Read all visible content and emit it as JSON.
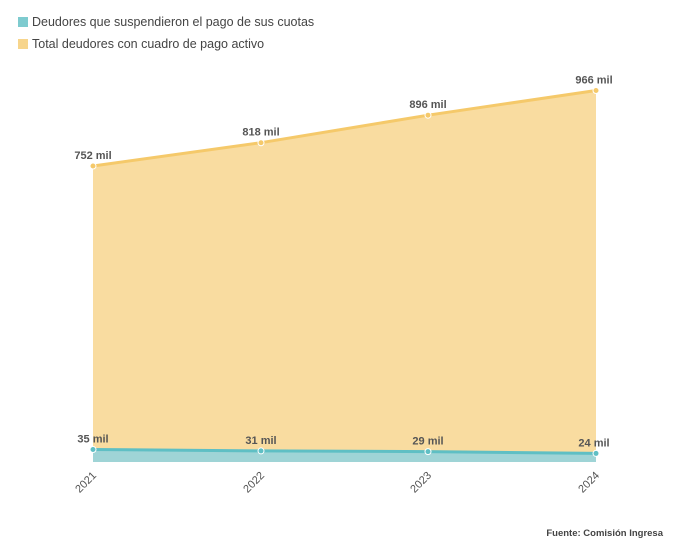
{
  "chart_data": {
    "type": "area",
    "categories": [
      "2021",
      "2022",
      "2023",
      "2024"
    ],
    "series": [
      {
        "name": "Total deudores con cuadro de pago activo",
        "values": [
          752,
          818,
          896,
          966
        ],
        "labels": [
          "752 mil",
          "818 mil",
          "896 mil",
          "966 mil"
        ],
        "color": "#f5c96a",
        "fill": "#f9dca0"
      },
      {
        "name": "Deudores que suspendieron el pago de sus cuotas",
        "values": [
          35,
          31,
          29,
          24
        ],
        "labels": [
          "35 mil",
          "31 mil",
          "29 mil",
          "24 mil"
        ],
        "color": "#5fbfc4",
        "fill": "#9fd4d6"
      }
    ],
    "grid": false,
    "legend_position": "top-left",
    "x_tick_rotation": "-45deg"
  },
  "legend": {
    "items": [
      {
        "label": "Deudores que suspendieron el pago de sus cuotas",
        "color": "#7ecbcf"
      },
      {
        "label": "Total deudores con cuadro de pago activo",
        "color": "#f7d58c"
      }
    ]
  },
  "source": "Fuente: Comisión Ingresa"
}
